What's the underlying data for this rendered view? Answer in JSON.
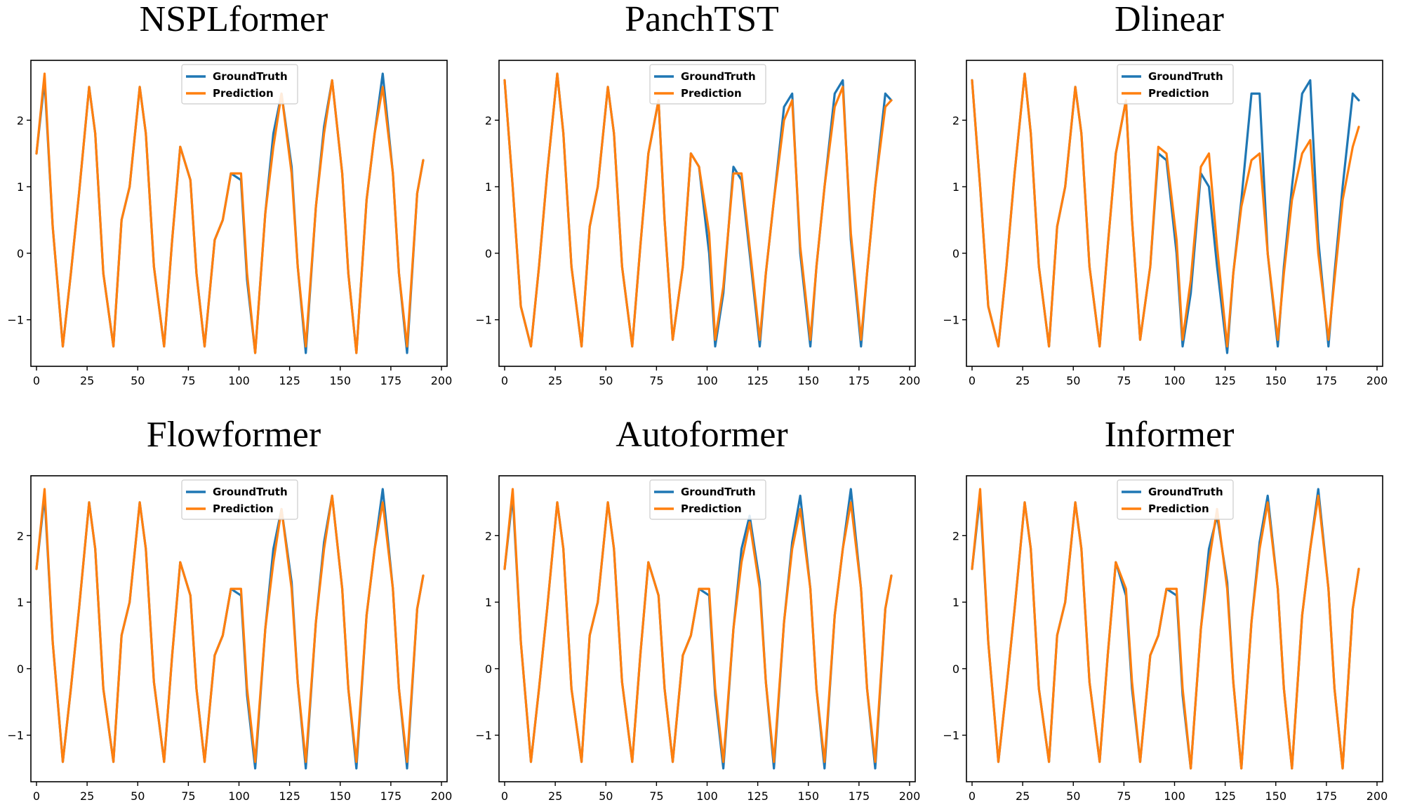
{
  "colors": {
    "ground_truth": "#1f77b4",
    "prediction": "#ff7f0e"
  },
  "chart_data": [
    {
      "type": "line",
      "title": "NSPLformer",
      "xlabel": "",
      "ylabel": "",
      "xlim": [
        0,
        200
      ],
      "ylim": [
        -1.7,
        2.9
      ],
      "xticks": [
        0,
        25,
        50,
        75,
        100,
        125,
        150,
        175,
        200
      ],
      "xtick_labels": [
        "0",
        "25",
        "50",
        "75",
        "100",
        "125",
        "150",
        "175",
        "200"
      ],
      "yticks": [
        -1,
        0,
        1,
        2
      ],
      "ytick_labels": [
        "−1",
        "0",
        "1",
        "2"
      ],
      "legend": "upper-center",
      "grid": false,
      "x": [
        0,
        4,
        8,
        13,
        17,
        21,
        26,
        29,
        33,
        38,
        42,
        46,
        51,
        54,
        58,
        63,
        67,
        71,
        76,
        79,
        83,
        88,
        92,
        96,
        101,
        104,
        108,
        113,
        117,
        121,
        126,
        129,
        133,
        138,
        142,
        146,
        151,
        154,
        158,
        163,
        167,
        171,
        176,
        179,
        183,
        188,
        191
      ],
      "series": [
        {
          "name": "GroundTruth",
          "values": [
            1.5,
            2.6,
            0.4,
            -1.4,
            -0.3,
            0.9,
            2.5,
            1.8,
            -0.3,
            -1.4,
            0.5,
            1.0,
            2.5,
            1.8,
            -0.2,
            -1.4,
            0.2,
            1.6,
            1.1,
            -0.3,
            -1.4,
            0.2,
            0.5,
            1.2,
            1.1,
            -0.4,
            -1.5,
            0.6,
            1.8,
            2.4,
            1.3,
            -0.2,
            -1.5,
            0.7,
            1.9,
            2.6,
            1.2,
            -0.3,
            -1.5,
            0.8,
            1.8,
            2.7,
            1.2,
            -0.3,
            -1.5,
            0.9,
            1.4
          ]
        },
        {
          "name": "Prediction",
          "values": [
            1.5,
            2.7,
            0.4,
            -1.4,
            -0.3,
            0.9,
            2.5,
            1.8,
            -0.3,
            -1.4,
            0.5,
            1.0,
            2.5,
            1.8,
            -0.2,
            -1.4,
            0.2,
            1.6,
            1.1,
            -0.3,
            -1.4,
            0.2,
            0.5,
            1.2,
            1.2,
            -0.3,
            -1.5,
            0.6,
            1.6,
            2.4,
            1.2,
            -0.2,
            -1.4,
            0.7,
            1.8,
            2.6,
            1.2,
            -0.3,
            -1.5,
            0.8,
            1.8,
            2.5,
            1.2,
            -0.3,
            -1.4,
            0.9,
            1.4
          ]
        }
      ]
    },
    {
      "type": "line",
      "title": "PanchTST",
      "xlabel": "",
      "ylabel": "",
      "xlim": [
        0,
        200
      ],
      "ylim": [
        -1.7,
        2.9
      ],
      "xticks": [
        0,
        25,
        50,
        75,
        100,
        125,
        150,
        175,
        200
      ],
      "xtick_labels": [
        "0",
        "25",
        "50",
        "75",
        "100",
        "125",
        "150",
        "175",
        "200"
      ],
      "yticks": [
        -1,
        0,
        1,
        2
      ],
      "ytick_labels": [
        "−1",
        "0",
        "1",
        "2"
      ],
      "legend": "upper-center",
      "grid": false,
      "x": [
        0,
        4,
        8,
        13,
        17,
        21,
        26,
        29,
        33,
        38,
        42,
        46,
        51,
        54,
        58,
        63,
        67,
        71,
        76,
        79,
        83,
        88,
        92,
        96,
        101,
        104,
        108,
        113,
        117,
        121,
        126,
        129,
        133,
        138,
        142,
        146,
        151,
        154,
        158,
        163,
        167,
        171,
        176,
        179,
        183,
        188,
        191
      ],
      "series": [
        {
          "name": "GroundTruth",
          "values": [
            2.6,
            1.0,
            -0.8,
            -1.4,
            -0.2,
            1.2,
            2.7,
            1.8,
            -0.2,
            -1.4,
            0.4,
            1.0,
            2.5,
            1.8,
            -0.2,
            -1.4,
            0.1,
            1.5,
            2.3,
            0.5,
            -1.3,
            -0.2,
            1.5,
            1.3,
            0.0,
            -1.4,
            -0.6,
            1.3,
            1.1,
            0.0,
            -1.4,
            -0.3,
            0.8,
            2.2,
            2.4,
            0.0,
            -1.4,
            -0.2,
            1.0,
            2.4,
            2.6,
            0.2,
            -1.4,
            -0.3,
            1.0,
            2.4,
            2.3
          ]
        },
        {
          "name": "Prediction",
          "values": [
            2.6,
            1.0,
            -0.8,
            -1.4,
            -0.2,
            1.2,
            2.7,
            1.8,
            -0.2,
            -1.4,
            0.4,
            1.0,
            2.5,
            1.8,
            -0.2,
            -1.4,
            0.1,
            1.5,
            2.3,
            0.5,
            -1.3,
            -0.2,
            1.5,
            1.3,
            0.3,
            -1.3,
            -0.5,
            1.2,
            1.2,
            0.1,
            -1.3,
            -0.3,
            0.8,
            2.0,
            2.3,
            0.1,
            -1.3,
            -0.2,
            1.0,
            2.2,
            2.5,
            0.3,
            -1.3,
            -0.3,
            1.0,
            2.2,
            2.3
          ]
        }
      ]
    },
    {
      "type": "line",
      "title": "Dlinear",
      "xlabel": "",
      "ylabel": "",
      "xlim": [
        0,
        200
      ],
      "ylim": [
        -1.7,
        2.9
      ],
      "xticks": [
        0,
        25,
        50,
        75,
        100,
        125,
        150,
        175,
        200
      ],
      "xtick_labels": [
        "0",
        "25",
        "50",
        "75",
        "100",
        "125",
        "150",
        "175",
        "200"
      ],
      "yticks": [
        -1,
        0,
        1,
        2
      ],
      "ytick_labels": [
        "−1",
        "0",
        "1",
        "2"
      ],
      "legend": "upper-center",
      "grid": false,
      "x": [
        0,
        4,
        8,
        13,
        17,
        21,
        26,
        29,
        33,
        38,
        42,
        46,
        51,
        54,
        58,
        63,
        67,
        71,
        76,
        79,
        83,
        88,
        92,
        96,
        101,
        104,
        108,
        113,
        117,
        121,
        126,
        129,
        133,
        138,
        142,
        146,
        151,
        154,
        158,
        163,
        167,
        171,
        176,
        179,
        183,
        188,
        191
      ],
      "series": [
        {
          "name": "GroundTruth",
          "values": [
            2.6,
            1.0,
            -0.8,
            -1.4,
            -0.2,
            1.2,
            2.7,
            1.8,
            -0.2,
            -1.4,
            0.4,
            1.0,
            2.5,
            1.8,
            -0.2,
            -1.4,
            0.1,
            1.5,
            2.3,
            0.5,
            -1.3,
            -0.2,
            1.5,
            1.4,
            0.0,
            -1.4,
            -0.6,
            1.2,
            1.0,
            -0.2,
            -1.5,
            -0.3,
            0.8,
            2.4,
            2.4,
            0.0,
            -1.4,
            -0.2,
            1.0,
            2.4,
            2.6,
            0.2,
            -1.4,
            -0.3,
            1.0,
            2.4,
            2.3
          ]
        },
        {
          "name": "Prediction",
          "values": [
            2.6,
            1.0,
            -0.8,
            -1.4,
            -0.2,
            1.2,
            2.7,
            1.8,
            -0.2,
            -1.4,
            0.4,
            1.0,
            2.5,
            1.8,
            -0.2,
            -1.4,
            0.1,
            1.5,
            2.3,
            0.5,
            -1.3,
            -0.2,
            1.6,
            1.5,
            0.2,
            -1.3,
            -0.4,
            1.3,
            1.5,
            0.1,
            -1.4,
            -0.3,
            0.7,
            1.4,
            1.5,
            0.0,
            -1.3,
            -0.3,
            0.8,
            1.5,
            1.7,
            0.0,
            -1.3,
            -0.4,
            0.8,
            1.6,
            1.9
          ]
        }
      ]
    },
    {
      "type": "line",
      "title": "Flowformer",
      "xlabel": "",
      "ylabel": "",
      "xlim": [
        0,
        200
      ],
      "ylim": [
        -1.7,
        2.9
      ],
      "xticks": [
        0,
        25,
        50,
        75,
        100,
        125,
        150,
        175,
        200
      ],
      "xtick_labels": [
        "0",
        "25",
        "50",
        "75",
        "100",
        "125",
        "150",
        "175",
        "200"
      ],
      "yticks": [
        -1,
        0,
        1,
        2
      ],
      "ytick_labels": [
        "−1",
        "0",
        "1",
        "2"
      ],
      "legend": "upper-center",
      "grid": false,
      "x": [
        0,
        4,
        8,
        13,
        17,
        21,
        26,
        29,
        33,
        38,
        42,
        46,
        51,
        54,
        58,
        63,
        67,
        71,
        76,
        79,
        83,
        88,
        92,
        96,
        101,
        104,
        108,
        113,
        117,
        121,
        126,
        129,
        133,
        138,
        142,
        146,
        151,
        154,
        158,
        163,
        167,
        171,
        176,
        179,
        183,
        188,
        191
      ],
      "series": [
        {
          "name": "GroundTruth",
          "values": [
            1.5,
            2.6,
            0.4,
            -1.4,
            -0.3,
            0.9,
            2.5,
            1.8,
            -0.3,
            -1.4,
            0.5,
            1.0,
            2.5,
            1.8,
            -0.2,
            -1.4,
            0.2,
            1.6,
            1.1,
            -0.3,
            -1.4,
            0.2,
            0.5,
            1.2,
            1.1,
            -0.4,
            -1.5,
            0.6,
            1.8,
            2.4,
            1.3,
            -0.2,
            -1.5,
            0.7,
            1.9,
            2.6,
            1.2,
            -0.3,
            -1.5,
            0.8,
            1.8,
            2.7,
            1.2,
            -0.3,
            -1.5,
            0.9,
            1.4
          ]
        },
        {
          "name": "Prediction",
          "values": [
            1.5,
            2.7,
            0.4,
            -1.4,
            -0.3,
            0.9,
            2.5,
            1.8,
            -0.3,
            -1.4,
            0.5,
            1.0,
            2.5,
            1.8,
            -0.2,
            -1.4,
            0.2,
            1.6,
            1.1,
            -0.3,
            -1.4,
            0.2,
            0.5,
            1.2,
            1.2,
            -0.3,
            -1.4,
            0.6,
            1.6,
            2.4,
            1.2,
            -0.2,
            -1.4,
            0.7,
            1.8,
            2.6,
            1.2,
            -0.3,
            -1.4,
            0.8,
            1.8,
            2.5,
            1.2,
            -0.3,
            -1.4,
            0.9,
            1.4
          ]
        }
      ]
    },
    {
      "type": "line",
      "title": "Autoformer",
      "xlabel": "",
      "ylabel": "",
      "xlim": [
        0,
        200
      ],
      "ylim": [
        -1.7,
        2.9
      ],
      "xticks": [
        0,
        25,
        50,
        75,
        100,
        125,
        150,
        175,
        200
      ],
      "xtick_labels": [
        "0",
        "25",
        "50",
        "75",
        "100",
        "125",
        "150",
        "175",
        "200"
      ],
      "yticks": [
        -1,
        0,
        1,
        2
      ],
      "ytick_labels": [
        "−1",
        "0",
        "1",
        "2"
      ],
      "legend": "upper-center",
      "grid": false,
      "x": [
        0,
        4,
        8,
        13,
        17,
        21,
        26,
        29,
        33,
        38,
        42,
        46,
        51,
        54,
        58,
        63,
        67,
        71,
        76,
        79,
        83,
        88,
        92,
        96,
        101,
        104,
        108,
        113,
        117,
        121,
        126,
        129,
        133,
        138,
        142,
        146,
        151,
        154,
        158,
        163,
        167,
        171,
        176,
        179,
        183,
        188,
        191
      ],
      "series": [
        {
          "name": "GroundTruth",
          "values": [
            1.5,
            2.6,
            0.4,
            -1.4,
            -0.3,
            0.9,
            2.5,
            1.8,
            -0.3,
            -1.4,
            0.5,
            1.0,
            2.5,
            1.8,
            -0.2,
            -1.4,
            0.2,
            1.6,
            1.1,
            -0.3,
            -1.4,
            0.2,
            0.5,
            1.2,
            1.1,
            -0.4,
            -1.5,
            0.6,
            1.8,
            2.3,
            1.3,
            -0.2,
            -1.5,
            0.7,
            1.9,
            2.6,
            1.2,
            -0.3,
            -1.5,
            0.8,
            1.8,
            2.7,
            1.2,
            -0.3,
            -1.5,
            0.9,
            1.4
          ]
        },
        {
          "name": "Prediction",
          "values": [
            1.5,
            2.7,
            0.4,
            -1.4,
            -0.3,
            0.9,
            2.5,
            1.8,
            -0.3,
            -1.4,
            0.5,
            1.0,
            2.5,
            1.8,
            -0.2,
            -1.4,
            0.2,
            1.6,
            1.1,
            -0.3,
            -1.4,
            0.2,
            0.5,
            1.2,
            1.2,
            -0.3,
            -1.4,
            0.6,
            1.6,
            2.2,
            1.2,
            -0.2,
            -1.4,
            0.7,
            1.8,
            2.4,
            1.2,
            -0.3,
            -1.4,
            0.8,
            1.8,
            2.5,
            1.2,
            -0.3,
            -1.4,
            0.9,
            1.4
          ]
        }
      ]
    },
    {
      "type": "line",
      "title": "Informer",
      "xlabel": "",
      "ylabel": "",
      "xlim": [
        0,
        200
      ],
      "ylim": [
        -1.7,
        2.9
      ],
      "xticks": [
        0,
        25,
        50,
        75,
        100,
        125,
        150,
        175,
        200
      ],
      "xtick_labels": [
        "0",
        "25",
        "50",
        "75",
        "100",
        "125",
        "150",
        "175",
        "200"
      ],
      "yticks": [
        -1,
        0,
        1,
        2
      ],
      "ytick_labels": [
        "−1",
        "0",
        "1",
        "2"
      ],
      "legend": "upper-center",
      "grid": false,
      "x": [
        0,
        4,
        8,
        13,
        17,
        21,
        26,
        29,
        33,
        38,
        42,
        46,
        51,
        54,
        58,
        63,
        67,
        71,
        76,
        79,
        83,
        88,
        92,
        96,
        101,
        104,
        108,
        113,
        117,
        121,
        126,
        129,
        133,
        138,
        142,
        146,
        151,
        154,
        158,
        163,
        167,
        171,
        176,
        179,
        183,
        188,
        191
      ],
      "series": [
        {
          "name": "GroundTruth",
          "values": [
            1.5,
            2.6,
            0.4,
            -1.4,
            -0.3,
            0.9,
            2.5,
            1.8,
            -0.3,
            -1.4,
            0.5,
            1.0,
            2.5,
            1.8,
            -0.2,
            -1.4,
            0.2,
            1.6,
            1.1,
            -0.3,
            -1.4,
            0.2,
            0.5,
            1.2,
            1.1,
            -0.4,
            -1.5,
            0.6,
            1.8,
            2.3,
            1.3,
            -0.2,
            -1.5,
            0.7,
            1.9,
            2.6,
            1.2,
            -0.3,
            -1.5,
            0.8,
            1.8,
            2.7,
            1.2,
            -0.3,
            -1.5,
            0.9,
            1.5
          ]
        },
        {
          "name": "Prediction",
          "values": [
            1.5,
            2.7,
            0.4,
            -1.4,
            -0.3,
            0.9,
            2.5,
            1.8,
            -0.3,
            -1.4,
            0.5,
            1.0,
            2.5,
            1.8,
            -0.2,
            -1.4,
            0.2,
            1.6,
            1.2,
            -0.2,
            -1.4,
            0.2,
            0.5,
            1.2,
            1.2,
            -0.3,
            -1.5,
            0.6,
            1.6,
            2.4,
            1.2,
            -0.2,
            -1.5,
            0.7,
            1.8,
            2.5,
            1.2,
            -0.3,
            -1.5,
            0.8,
            1.8,
            2.6,
            1.2,
            -0.3,
            -1.5,
            0.9,
            1.5
          ]
        }
      ]
    }
  ]
}
